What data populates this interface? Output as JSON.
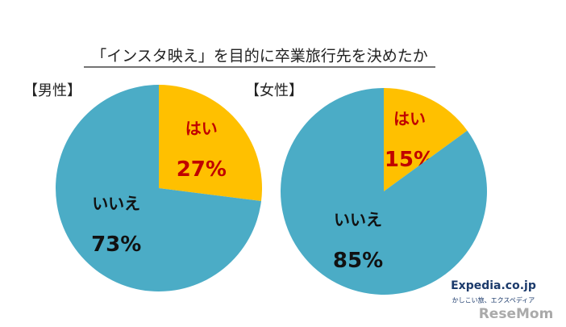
{
  "title": "「インスタ映え」を目的に卒業旅行先を決めたか",
  "logos": {
    "brand": "Expedia.co.jp",
    "tagline": "かしこい旅、エクスペディア",
    "site": "ReseMom"
  },
  "chart_data": [
    {
      "type": "pie",
      "subtitle": "【男性】",
      "categories": [
        "はい",
        "いいえ"
      ],
      "values": [
        27,
        73
      ],
      "value_labels": [
        "27%",
        "73%"
      ],
      "colors": [
        "#ffc000",
        "#4bacc6"
      ],
      "label_colors": [
        "#c00000",
        "#111111"
      ]
    },
    {
      "type": "pie",
      "subtitle": "【女性】",
      "categories": [
        "はい",
        "いいえ"
      ],
      "values": [
        15,
        85
      ],
      "value_labels": [
        "15%",
        "85%"
      ],
      "colors": [
        "#ffc000",
        "#4bacc6"
      ],
      "label_colors": [
        "#c00000",
        "#111111"
      ]
    }
  ]
}
